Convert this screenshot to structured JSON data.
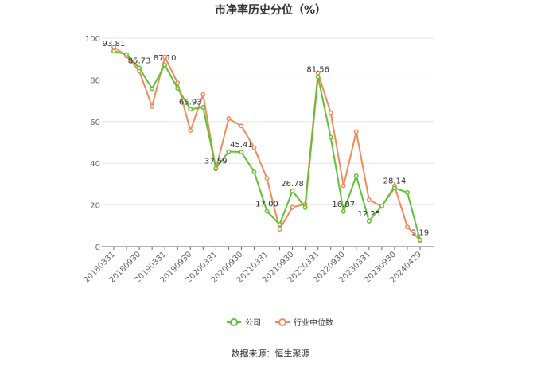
{
  "title": "市净率历史分位（%）",
  "source": "数据来源：恒生聚源",
  "chart_data": {
    "type": "line",
    "title": "市净率历史分位（%）",
    "ylim": [
      0,
      100
    ],
    "yticks": [
      0,
      20,
      40,
      60,
      80,
      100
    ],
    "grid": true,
    "legend_position": "bottom",
    "x": [
      "20180331",
      "20180630",
      "20180930",
      "20181231",
      "20190331",
      "20190630",
      "20190930",
      "20191231",
      "20200331",
      "20200630",
      "20200930",
      "20201231",
      "20210331",
      "20210630",
      "20210930",
      "20211231",
      "20220331",
      "20220630",
      "20220930",
      "20221231",
      "20230331",
      "20230630",
      "20230930",
      "20231231",
      "20240429"
    ],
    "xtick_labels": [
      "20180331",
      "20180930",
      "20190331",
      "20190930",
      "20200331",
      "20200930",
      "20210331",
      "20210930",
      "20220331",
      "20220930",
      "20230331",
      "20230930",
      "20240429"
    ],
    "series": [
      {
        "name": "公司",
        "color": "#5fc235",
        "values": [
          93.81,
          92.2,
          85.73,
          75.8,
          87.1,
          76.0,
          65.93,
          66.8,
          37.59,
          45.6,
          45.41,
          35.8,
          17.0,
          10.7,
          26.78,
          18.8,
          81.56,
          52.4,
          16.87,
          34.0,
          12.25,
          19.6,
          28.14,
          26.0,
          3.19
        ]
      },
      {
        "name": "行业中位数",
        "color": "#f08a5d",
        "values": [
          95.9,
          91.4,
          84.2,
          67.2,
          91.0,
          78.6,
          55.7,
          73.0,
          37.3,
          61.4,
          57.9,
          47.5,
          32.8,
          8.4,
          18.9,
          20.4,
          83.4,
          64.2,
          29.2,
          55.2,
          22.5,
          19.3,
          29.1,
          9.5,
          3.0
        ]
      }
    ],
    "annotations": [
      {
        "series": 0,
        "index": 0,
        "text": "93.81"
      },
      {
        "series": 0,
        "index": 2,
        "text": "85.73"
      },
      {
        "series": 0,
        "index": 4,
        "text": "87.10"
      },
      {
        "series": 0,
        "index": 6,
        "text": "65.93"
      },
      {
        "series": 0,
        "index": 8,
        "text": "37.59"
      },
      {
        "series": 0,
        "index": 10,
        "text": "45.41"
      },
      {
        "series": 0,
        "index": 12,
        "text": "17.00"
      },
      {
        "series": 0,
        "index": 14,
        "text": "26.78"
      },
      {
        "series": 0,
        "index": 16,
        "text": "81.56"
      },
      {
        "series": 0,
        "index": 18,
        "text": "16.87"
      },
      {
        "series": 0,
        "index": 20,
        "text": "12.25"
      },
      {
        "series": 0,
        "index": 22,
        "text": "28.14"
      },
      {
        "series": 0,
        "index": 24,
        "text": "3.19"
      }
    ]
  }
}
